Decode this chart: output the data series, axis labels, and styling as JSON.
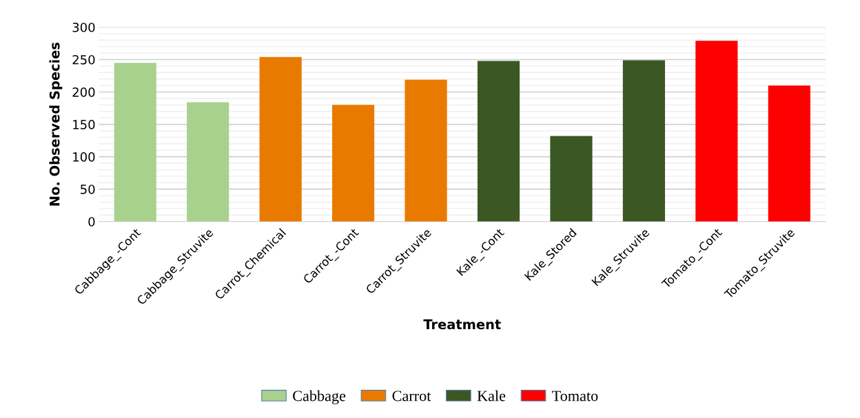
{
  "chart_data": {
    "type": "bar",
    "xlabel": "Treatment",
    "ylabel": "No. Observed Species",
    "categories": [
      "Cabbage_-Cont",
      "Cabbage_Struvite",
      "Carrot_Chemical",
      "Carrot_-Cont",
      "Carrot_Struvite",
      "Kale_-Cont",
      "Kale_Stored",
      "Kale_Struvite",
      "Tomato_-Cont",
      "Tomato_Struvite"
    ],
    "series": [
      {
        "name": "Cabbage",
        "color": "#a9d18e",
        "values": [
          245,
          184,
          null,
          null,
          null,
          null,
          null,
          null,
          null,
          null
        ]
      },
      {
        "name": "Carrot",
        "color": "#e97a00",
        "values": [
          null,
          null,
          254,
          180,
          219,
          null,
          null,
          null,
          null,
          null
        ]
      },
      {
        "name": "Kale",
        "color": "#3a5724",
        "values": [
          null,
          null,
          null,
          null,
          null,
          248,
          132,
          249,
          null,
          null
        ]
      },
      {
        "name": "Tomato",
        "color": "#ff0000",
        "values": [
          null,
          null,
          null,
          null,
          null,
          null,
          null,
          null,
          279,
          210
        ]
      }
    ],
    "ylim": [
      0,
      300
    ],
    "yticks": [
      0,
      50,
      100,
      150,
      200,
      250,
      300
    ],
    "grid": "y",
    "legend": "bottom"
  }
}
